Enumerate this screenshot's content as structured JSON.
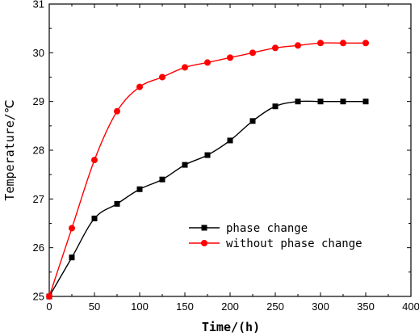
{
  "chart_data": {
    "type": "line",
    "xlabel": "Time/(h)",
    "ylabel": "Temperature/℃",
    "xlim": [
      0,
      400
    ],
    "ylim": [
      25,
      31
    ],
    "x_ticks": [
      0,
      50,
      100,
      150,
      200,
      250,
      300,
      350,
      400
    ],
    "y_ticks": [
      25,
      26,
      27,
      28,
      29,
      30,
      31
    ],
    "grid": false,
    "legend_position": "lower-right",
    "x": [
      0,
      25,
      50,
      75,
      100,
      125,
      150,
      175,
      200,
      225,
      250,
      275,
      300,
      325,
      350
    ],
    "series": [
      {
        "name": "phase change",
        "color": "#000000",
        "marker": "square",
        "values": [
          25.0,
          25.8,
          26.6,
          26.9,
          27.2,
          27.4,
          27.7,
          27.9,
          28.2,
          28.6,
          28.9,
          29.0,
          29.0,
          29.0,
          29.0
        ]
      },
      {
        "name": "without phase change",
        "color": "#ff0000",
        "marker": "circle",
        "values": [
          25.0,
          26.4,
          27.8,
          28.8,
          29.3,
          29.5,
          29.7,
          29.8,
          29.9,
          30.0,
          30.1,
          30.15,
          30.2,
          30.2,
          30.2
        ]
      }
    ]
  }
}
